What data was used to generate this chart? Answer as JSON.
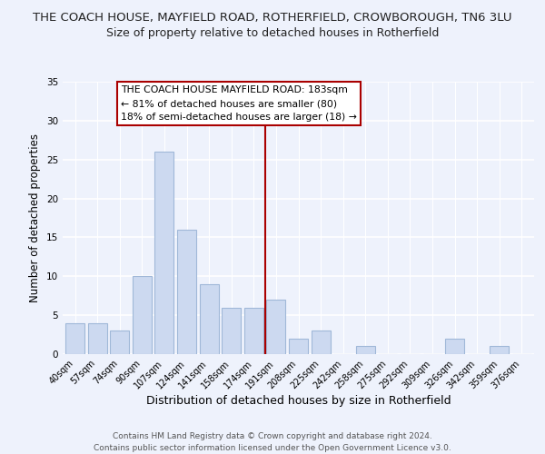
{
  "title": "THE COACH HOUSE, MAYFIELD ROAD, ROTHERFIELD, CROWBOROUGH, TN6 3LU",
  "subtitle": "Size of property relative to detached houses in Rotherfield",
  "xlabel": "Distribution of detached houses by size in Rotherfield",
  "ylabel": "Number of detached properties",
  "footer_line1": "Contains HM Land Registry data © Crown copyright and database right 2024.",
  "footer_line2": "Contains public sector information licensed under the Open Government Licence v3.0.",
  "bar_labels": [
    "40sqm",
    "57sqm",
    "74sqm",
    "90sqm",
    "107sqm",
    "124sqm",
    "141sqm",
    "158sqm",
    "174sqm",
    "191sqm",
    "208sqm",
    "225sqm",
    "242sqm",
    "258sqm",
    "275sqm",
    "292sqm",
    "309sqm",
    "326sqm",
    "342sqm",
    "359sqm",
    "376sqm"
  ],
  "bar_values": [
    4,
    4,
    3,
    10,
    26,
    16,
    9,
    6,
    6,
    7,
    2,
    3,
    0,
    1,
    0,
    0,
    0,
    2,
    0,
    1,
    0
  ],
  "bar_color": "#ccd9f0",
  "bar_edgecolor": "#a0b8d8",
  "vline_color": "#aa0000",
  "annotation_title": "THE COACH HOUSE MAYFIELD ROAD: 183sqm",
  "annotation_line1": "← 81% of detached houses are smaller (80)",
  "annotation_line2": "18% of semi-detached houses are larger (18) →",
  "annotation_box_color": "#ffffff",
  "annotation_box_edgecolor": "#aa0000",
  "ylim": [
    0,
    35
  ],
  "yticks": [
    0,
    5,
    10,
    15,
    20,
    25,
    30,
    35
  ],
  "background_color": "#eef2fc",
  "title_fontsize": 9.5,
  "subtitle_fontsize": 9,
  "axis_label_fontsize": 9,
  "tick_fontsize": 7,
  "footer_fontsize": 6.5
}
